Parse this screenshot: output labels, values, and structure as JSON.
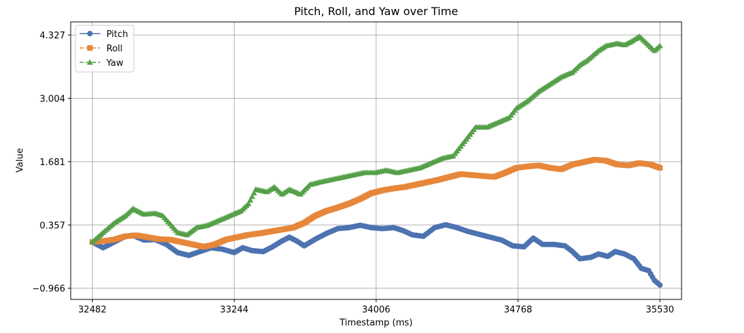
{
  "chart_data": {
    "type": "line",
    "title": "Pitch, Roll, and Yaw over Time",
    "xlabel": "Timestamp (ms)",
    "ylabel": "Value",
    "xlim": [
      32366,
      35646
    ],
    "ylim": [
      -1.2,
      4.6
    ],
    "xticks": [
      32482,
      33244,
      34006,
      34768,
      35530
    ],
    "xtick_labels": [
      "32482",
      "33244",
      "34006",
      "34768",
      "35530"
    ],
    "yticks": [
      -0.966,
      0.357,
      1.681,
      3.004,
      4.327
    ],
    "ytick_labels": [
      "−0.966",
      "0.357",
      "1.681",
      "3.004",
      "4.327"
    ],
    "grid": true,
    "legend_position": "top-left",
    "series": [
      {
        "name": "Pitch",
        "color": "#4c72b0",
        "marker": "circle",
        "points": [
          [
            32482,
            0.0
          ],
          [
            32540,
            -0.12
          ],
          [
            32600,
            0.0
          ],
          [
            32660,
            0.12
          ],
          [
            32700,
            0.14
          ],
          [
            32760,
            0.04
          ],
          [
            32820,
            0.05
          ],
          [
            32880,
            -0.05
          ],
          [
            32940,
            -0.22
          ],
          [
            33000,
            -0.28
          ],
          [
            33060,
            -0.2
          ],
          [
            33120,
            -0.12
          ],
          [
            33180,
            -0.15
          ],
          [
            33244,
            -0.22
          ],
          [
            33290,
            -0.12
          ],
          [
            33340,
            -0.18
          ],
          [
            33400,
            -0.2
          ],
          [
            33450,
            -0.1
          ],
          [
            33500,
            0.02
          ],
          [
            33540,
            0.1
          ],
          [
            33580,
            0.02
          ],
          [
            33620,
            -0.08
          ],
          [
            33680,
            0.06
          ],
          [
            33740,
            0.18
          ],
          [
            33800,
            0.28
          ],
          [
            33860,
            0.3
          ],
          [
            33920,
            0.35
          ],
          [
            33980,
            0.3
          ],
          [
            34040,
            0.28
          ],
          [
            34100,
            0.3
          ],
          [
            34150,
            0.24
          ],
          [
            34200,
            0.15
          ],
          [
            34260,
            0.12
          ],
          [
            34320,
            0.3
          ],
          [
            34380,
            0.36
          ],
          [
            34440,
            0.3
          ],
          [
            34500,
            0.22
          ],
          [
            34560,
            0.16
          ],
          [
            34620,
            0.1
          ],
          [
            34680,
            0.04
          ],
          [
            34740,
            -0.08
          ],
          [
            34800,
            -0.1
          ],
          [
            34850,
            0.08
          ],
          [
            34900,
            -0.05
          ],
          [
            34960,
            -0.05
          ],
          [
            35020,
            -0.08
          ],
          [
            35060,
            -0.2
          ],
          [
            35100,
            -0.35
          ],
          [
            35160,
            -0.32
          ],
          [
            35200,
            -0.25
          ],
          [
            35250,
            -0.3
          ],
          [
            35290,
            -0.2
          ],
          [
            35340,
            -0.25
          ],
          [
            35390,
            -0.35
          ],
          [
            35430,
            -0.55
          ],
          [
            35470,
            -0.6
          ],
          [
            35500,
            -0.8
          ],
          [
            35530,
            -0.9
          ]
        ]
      },
      {
        "name": "Roll",
        "color": "#e6873a",
        "marker": "square",
        "points": [
          [
            32482,
            0.0
          ],
          [
            32540,
            0.02
          ],
          [
            32600,
            0.05
          ],
          [
            32660,
            0.12
          ],
          [
            32720,
            0.14
          ],
          [
            32780,
            0.1
          ],
          [
            32840,
            0.06
          ],
          [
            32900,
            0.05
          ],
          [
            32960,
            0.0
          ],
          [
            33020,
            -0.05
          ],
          [
            33080,
            -0.1
          ],
          [
            33140,
            -0.05
          ],
          [
            33200,
            0.05
          ],
          [
            33260,
            0.1
          ],
          [
            33320,
            0.15
          ],
          [
            33380,
            0.18
          ],
          [
            33440,
            0.22
          ],
          [
            33500,
            0.26
          ],
          [
            33560,
            0.3
          ],
          [
            33620,
            0.4
          ],
          [
            33680,
            0.55
          ],
          [
            33740,
            0.65
          ],
          [
            33800,
            0.72
          ],
          [
            33860,
            0.8
          ],
          [
            33920,
            0.9
          ],
          [
            33980,
            1.02
          ],
          [
            34040,
            1.08
          ],
          [
            34100,
            1.12
          ],
          [
            34160,
            1.15
          ],
          [
            34220,
            1.2
          ],
          [
            34280,
            1.25
          ],
          [
            34340,
            1.3
          ],
          [
            34400,
            1.36
          ],
          [
            34460,
            1.42
          ],
          [
            34520,
            1.4
          ],
          [
            34580,
            1.38
          ],
          [
            34640,
            1.36
          ],
          [
            34700,
            1.45
          ],
          [
            34760,
            1.55
          ],
          [
            34820,
            1.58
          ],
          [
            34880,
            1.6
          ],
          [
            34940,
            1.55
          ],
          [
            35000,
            1.52
          ],
          [
            35060,
            1.62
          ],
          [
            35120,
            1.67
          ],
          [
            35180,
            1.72
          ],
          [
            35240,
            1.7
          ],
          [
            35300,
            1.62
          ],
          [
            35360,
            1.6
          ],
          [
            35420,
            1.65
          ],
          [
            35480,
            1.62
          ],
          [
            35530,
            1.55
          ]
        ]
      },
      {
        "name": "Yaw",
        "color": "#55a049",
        "marker": "triangle",
        "points": [
          [
            32482,
            0.0
          ],
          [
            32540,
            0.2
          ],
          [
            32600,
            0.4
          ],
          [
            32660,
            0.55
          ],
          [
            32700,
            0.7
          ],
          [
            32760,
            0.58
          ],
          [
            32820,
            0.6
          ],
          [
            32860,
            0.55
          ],
          [
            32900,
            0.38
          ],
          [
            32940,
            0.2
          ],
          [
            32990,
            0.15
          ],
          [
            33040,
            0.3
          ],
          [
            33100,
            0.35
          ],
          [
            33160,
            0.45
          ],
          [
            33220,
            0.55
          ],
          [
            33280,
            0.65
          ],
          [
            33320,
            0.8
          ],
          [
            33360,
            1.1
          ],
          [
            33420,
            1.05
          ],
          [
            33460,
            1.15
          ],
          [
            33500,
            1.0
          ],
          [
            33540,
            1.1
          ],
          [
            33600,
            1.0
          ],
          [
            33650,
            1.2
          ],
          [
            33700,
            1.25
          ],
          [
            33760,
            1.3
          ],
          [
            33820,
            1.35
          ],
          [
            33880,
            1.4
          ],
          [
            33940,
            1.45
          ],
          [
            34000,
            1.45
          ],
          [
            34060,
            1.5
          ],
          [
            34120,
            1.45
          ],
          [
            34180,
            1.5
          ],
          [
            34240,
            1.55
          ],
          [
            34300,
            1.65
          ],
          [
            34360,
            1.75
          ],
          [
            34420,
            1.8
          ],
          [
            34460,
            2.0
          ],
          [
            34500,
            2.2
          ],
          [
            34540,
            2.4
          ],
          [
            34600,
            2.4
          ],
          [
            34660,
            2.5
          ],
          [
            34720,
            2.6
          ],
          [
            34760,
            2.8
          ],
          [
            34820,
            2.95
          ],
          [
            34880,
            3.15
          ],
          [
            34940,
            3.3
          ],
          [
            35000,
            3.45
          ],
          [
            35060,
            3.55
          ],
          [
            35100,
            3.7
          ],
          [
            35140,
            3.8
          ],
          [
            35200,
            4.0
          ],
          [
            35240,
            4.1
          ],
          [
            35300,
            4.15
          ],
          [
            35340,
            4.12
          ],
          [
            35380,
            4.2
          ],
          [
            35420,
            4.3
          ],
          [
            35460,
            4.15
          ],
          [
            35500,
            4.0
          ],
          [
            35530,
            4.1
          ]
        ]
      }
    ]
  }
}
